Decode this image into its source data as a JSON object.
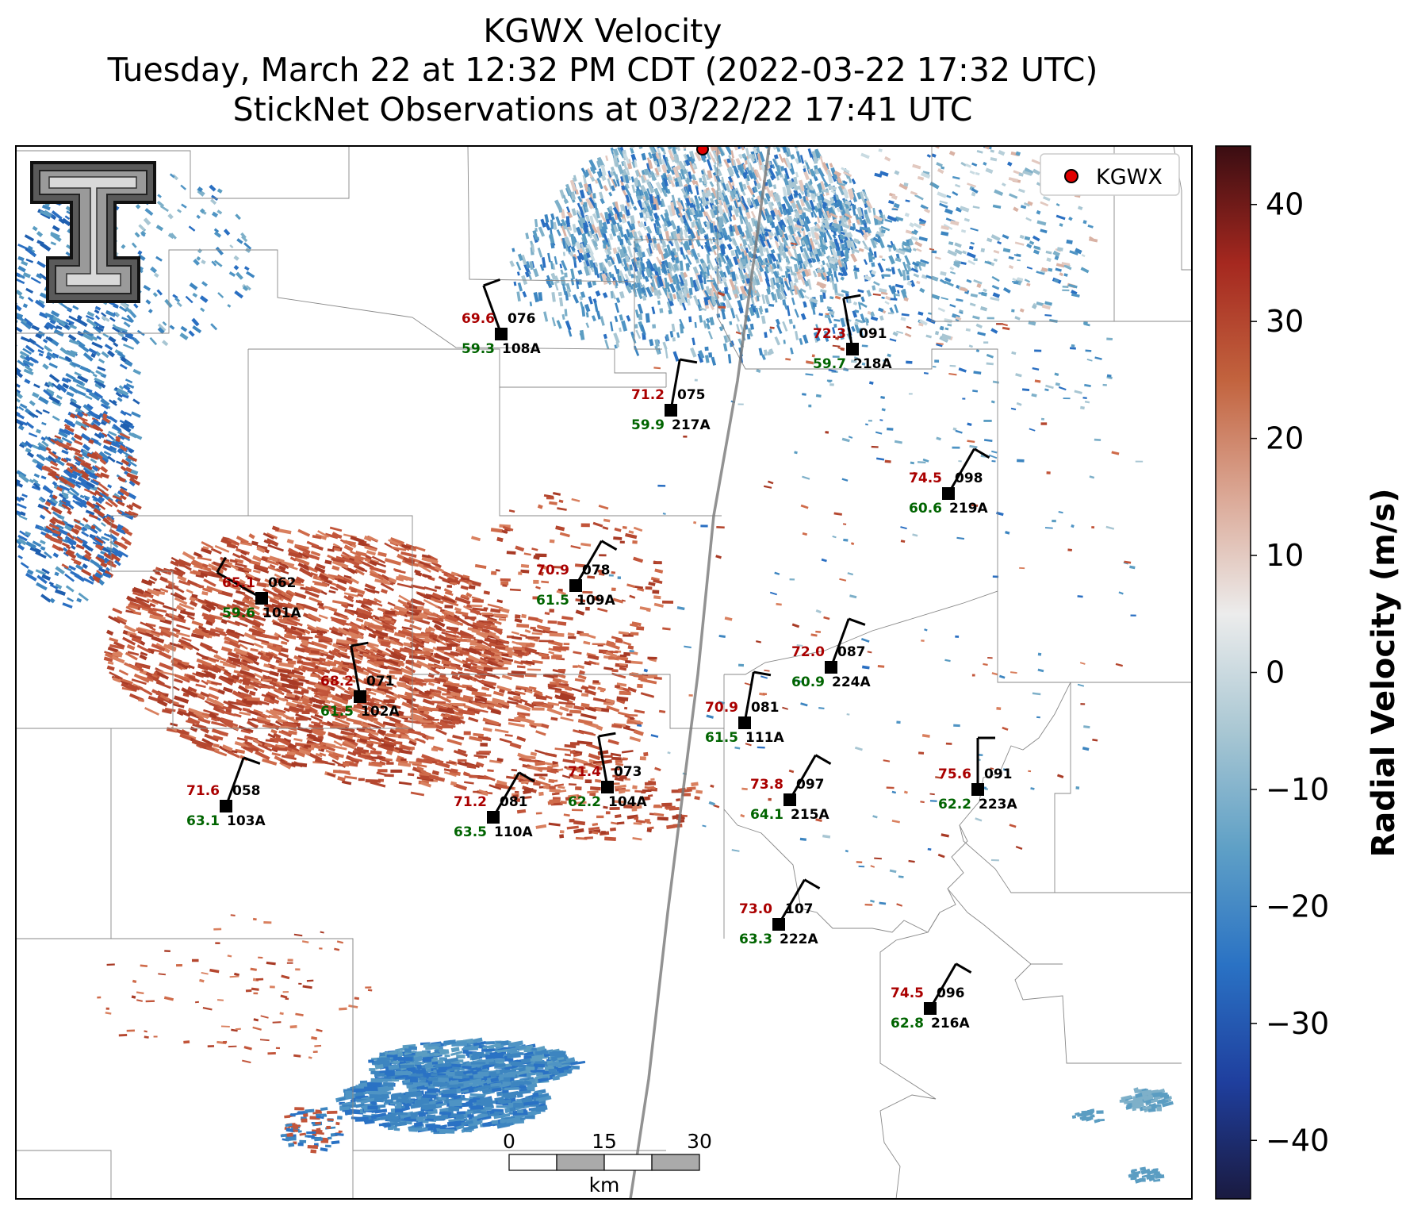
{
  "title": {
    "line1": "KGWX Velocity",
    "line2": "Tuesday, March 22 at 12:32 PM CDT (2022-03-22 17:32 UTC)",
    "line3": "StickNet Observations at 03/22/22 17:41 UTC"
  },
  "legend": {
    "label": "KGWX",
    "marker_color": "#e00000"
  },
  "colorbar": {
    "label": "Radial Velocity (m/s)",
    "ticks": [
      "40",
      "30",
      "20",
      "10",
      "0",
      "−10",
      "−20",
      "−30",
      "−40"
    ],
    "range": [
      -45,
      45
    ],
    "colors": [
      "#1a1a40",
      "#1f3f9e",
      "#2a72c4",
      "#5fa0c6",
      "#a9c7d3",
      "#ececec",
      "#dba896",
      "#c2633e",
      "#a5281f",
      "#3a0d12"
    ]
  },
  "scalebar": {
    "ticks": [
      "0",
      "15",
      "30"
    ],
    "unit": "km"
  },
  "logo": {
    "text": "T",
    "icon": "texas-tech-logo"
  },
  "stations": [
    {
      "id": "076",
      "name": "108A",
      "temp": "69.6",
      "dew": "59.3"
    },
    {
      "id": "091",
      "name": "218A",
      "temp": "72.3",
      "dew": "59.7"
    },
    {
      "id": "075",
      "name": "217A",
      "temp": "71.2",
      "dew": "59.9"
    },
    {
      "id": "098",
      "name": "219A",
      "temp": "74.5",
      "dew": "60.6"
    },
    {
      "id": "062",
      "name": "101A",
      "temp": "65.1",
      "dew": "59.6"
    },
    {
      "id": "078",
      "name": "109A",
      "temp": "70.9",
      "dew": "61.5"
    },
    {
      "id": "087",
      "name": "224A",
      "temp": "72.0",
      "dew": "60.9"
    },
    {
      "id": "071",
      "name": "102A",
      "temp": "68.2",
      "dew": "61.5"
    },
    {
      "id": "081",
      "name": "111A",
      "temp": "70.9",
      "dew": "61.5"
    },
    {
      "id": "073",
      "name": "104A",
      "temp": "71.4",
      "dew": "62.2"
    },
    {
      "id": "097",
      "name": "215A",
      "temp": "73.8",
      "dew": "64.1"
    },
    {
      "id": "091",
      "name": "223A",
      "temp": "75.6",
      "dew": "62.2"
    },
    {
      "id": "058",
      "name": "103A",
      "temp": "71.6",
      "dew": "63.1"
    },
    {
      "id": "081",
      "name": "110A",
      "temp": "71.2",
      "dew": "63.5"
    },
    {
      "id": "107",
      "name": "222A",
      "temp": "73.0",
      "dew": "63.3"
    },
    {
      "id": "096",
      "name": "216A",
      "temp": "74.5",
      "dew": "62.8"
    }
  ],
  "colors": {
    "temp": "#aa0000",
    "dew": "#006400",
    "station": "#000000"
  }
}
